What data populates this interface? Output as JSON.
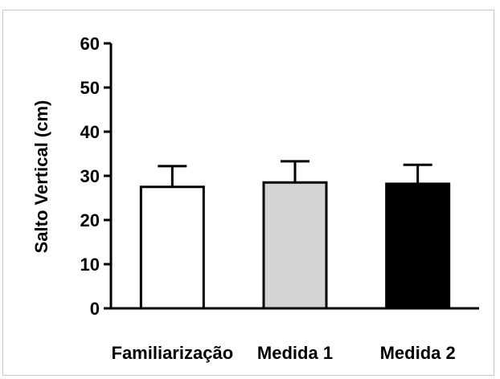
{
  "chart_data": {
    "type": "bar",
    "title": "",
    "xlabel": "",
    "ylabel": "Salto Vertical (cm)",
    "ylim": [
      0,
      60
    ],
    "yticks": [
      0,
      10,
      20,
      30,
      40,
      50,
      60
    ],
    "ytick_labels": [
      "0",
      "10",
      "20",
      "30",
      "40",
      "50",
      "60"
    ],
    "categories": [
      "Familiarização",
      "Medida 1",
      "Medida 2"
    ],
    "values": [
      27.5,
      28.5,
      28.2
    ],
    "errors_upper": [
      4.7,
      4.8,
      4.3
    ],
    "colors": [
      "#ffffff",
      "#d3d3d3",
      "#000000"
    ],
    "edge_color": "#000000",
    "grid": false,
    "legend": "none"
  }
}
